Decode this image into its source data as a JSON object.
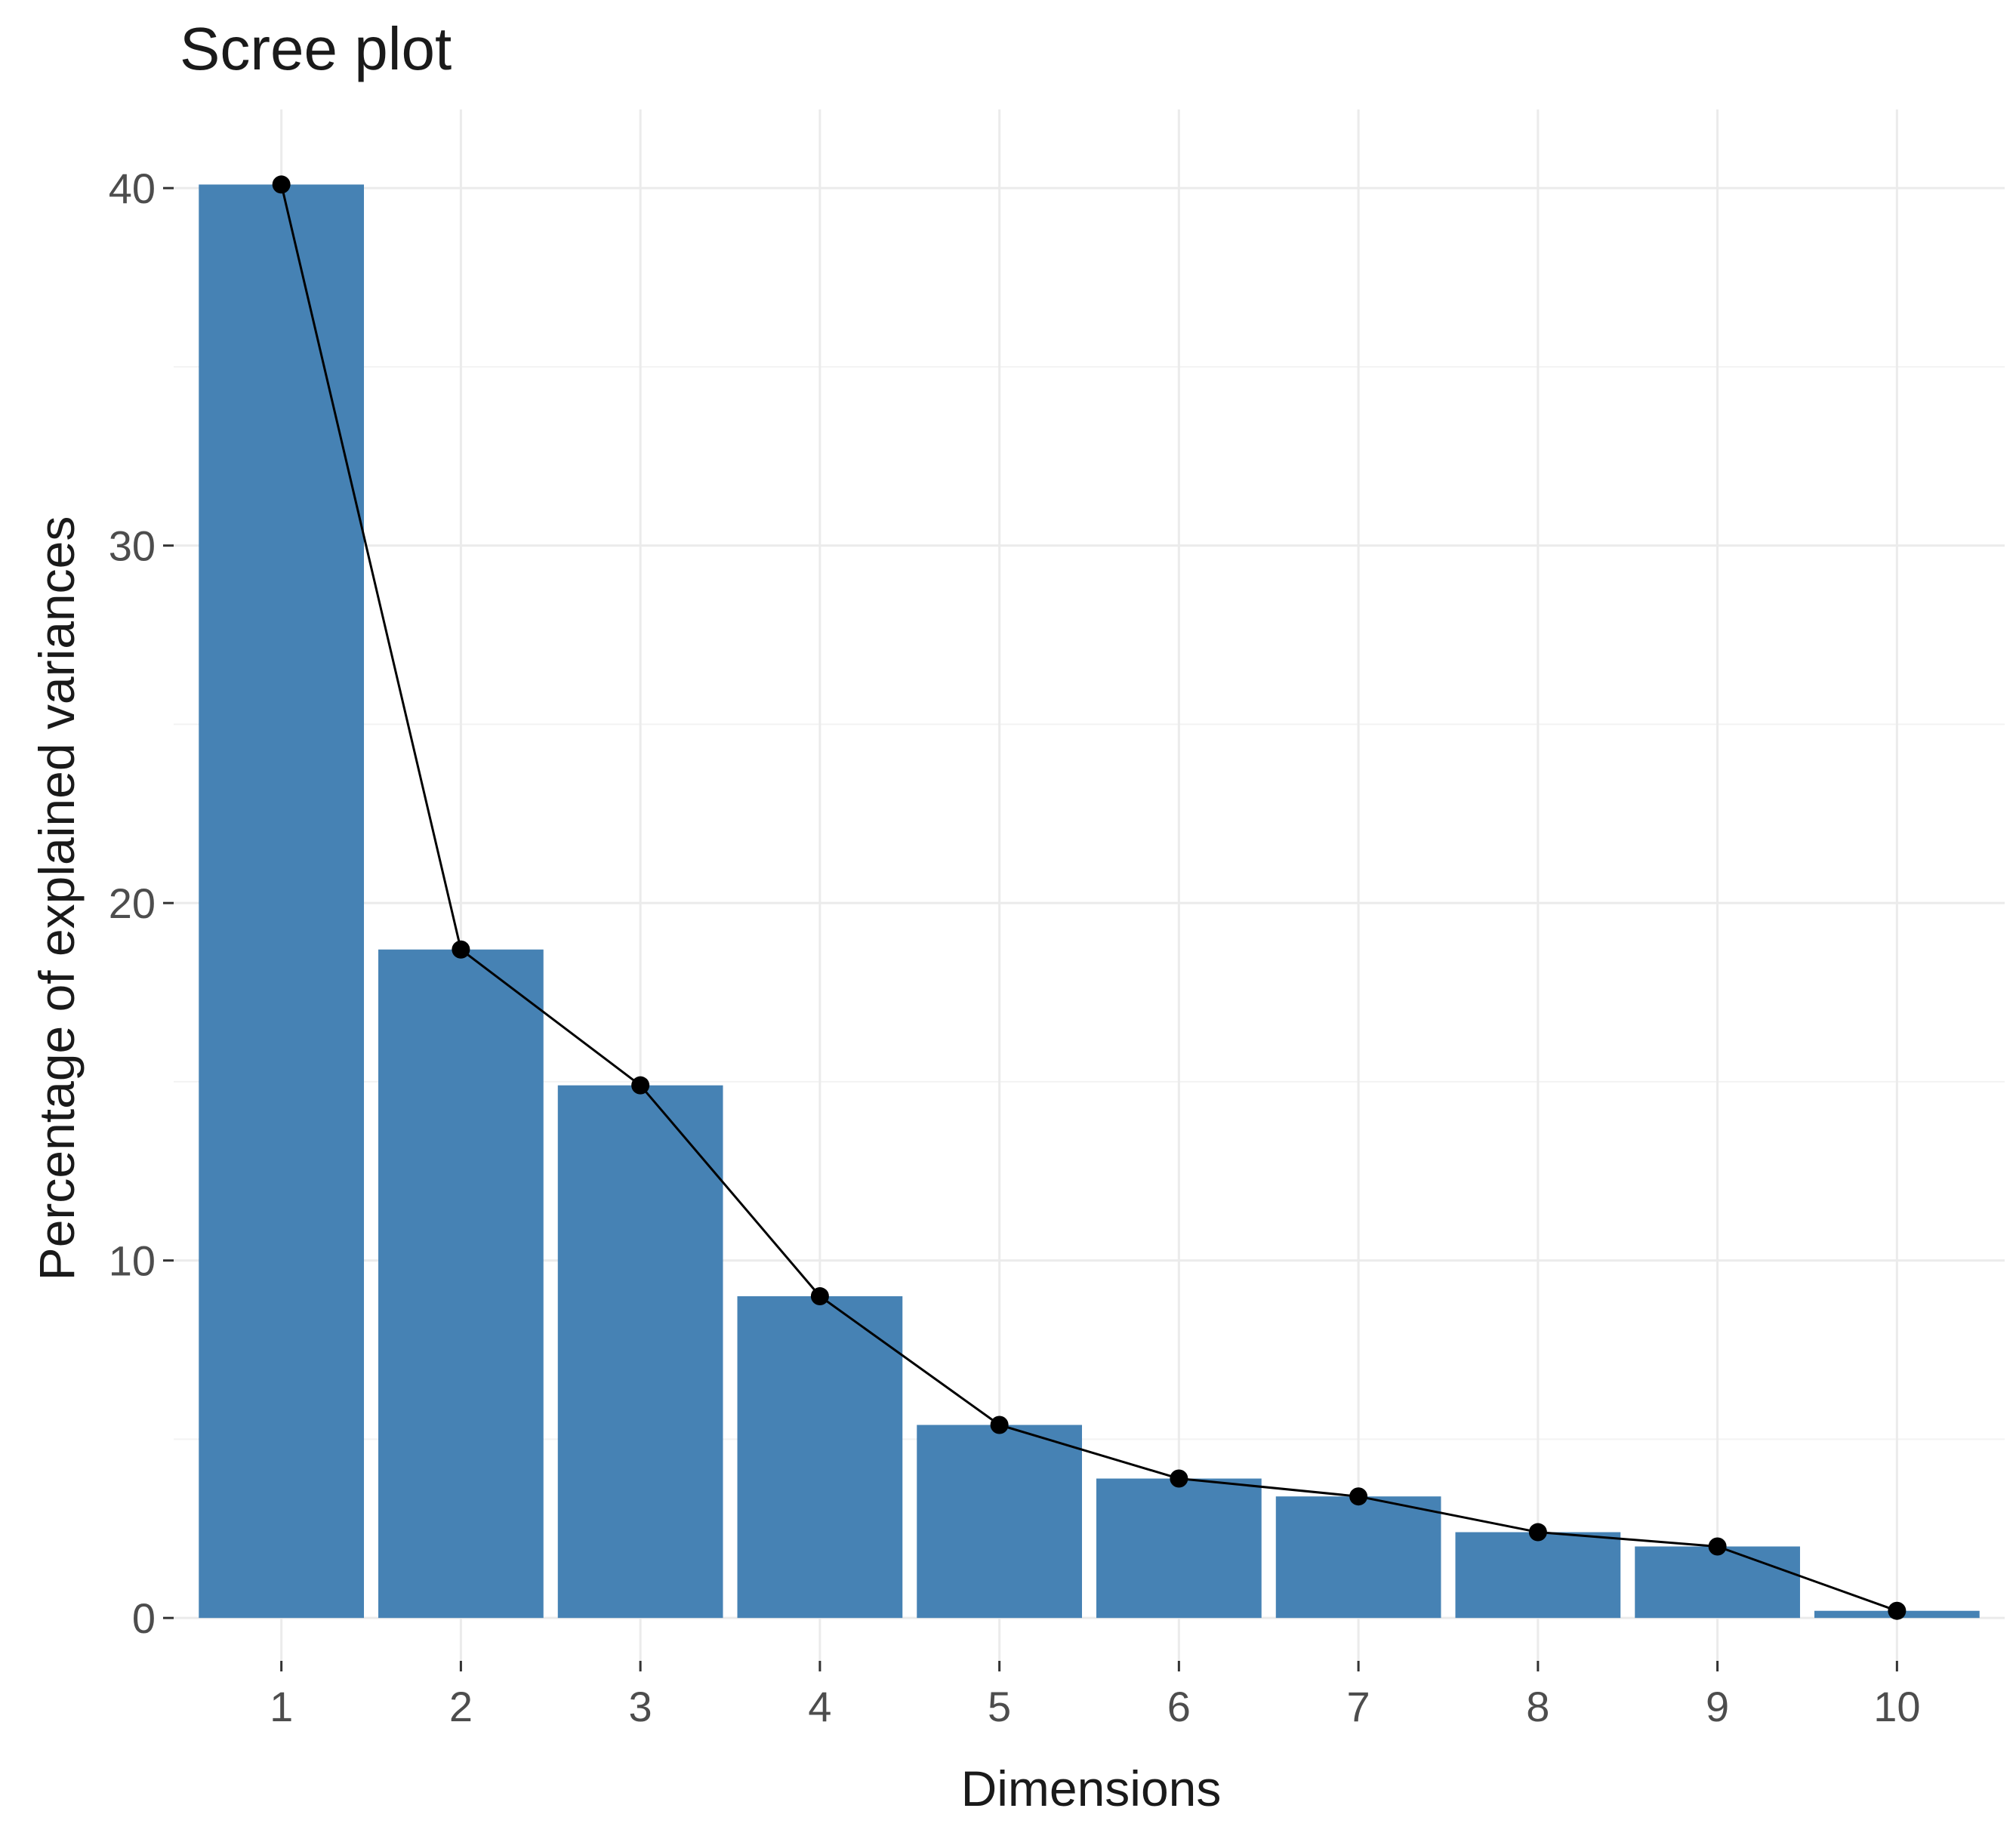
{
  "chart_data": {
    "type": "bar",
    "title": "Scree plot",
    "xlabel": "Dimensions",
    "ylabel": "Percentage of explained variances",
    "categories": [
      "1",
      "2",
      "3",
      "4",
      "5",
      "6",
      "7",
      "8",
      "9",
      "10"
    ],
    "values": [
      40.1,
      18.7,
      14.9,
      9.0,
      5.4,
      3.9,
      3.4,
      2.4,
      2.0,
      0.2
    ],
    "ylim": [
      -1.2,
      42.2
    ],
    "yticks": [
      0,
      10,
      20,
      30,
      40
    ],
    "ytick_labels": [
      "0",
      "10",
      "20",
      "30",
      "40"
    ],
    "grid": true,
    "overlay": "line-with-points",
    "colors": {
      "bar": "#4682b4",
      "line": "#000000",
      "point": "#000000"
    }
  }
}
